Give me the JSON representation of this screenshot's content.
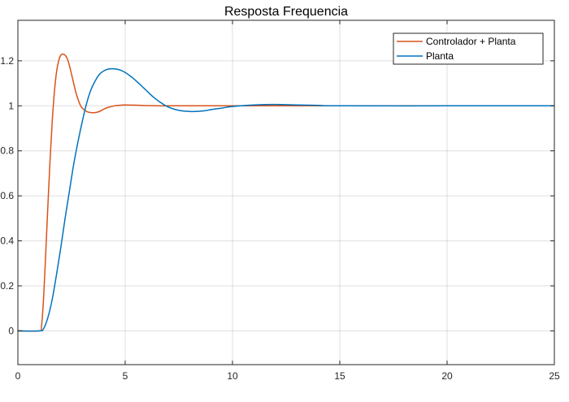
{
  "chart_data": {
    "type": "line",
    "title": "Resposta Frequencia",
    "xlabel": "",
    "ylabel": "",
    "xlim": [
      0,
      25
    ],
    "ylim": [
      -0.15,
      1.38
    ],
    "xticks": [
      0,
      5,
      10,
      15,
      20,
      25
    ],
    "yticks": [
      0,
      0.2,
      0.4,
      0.6,
      0.8,
      1,
      1.2
    ],
    "grid": true,
    "legend_position": "top-right",
    "series": [
      {
        "name": "Controlador + Planta",
        "color": "#D95319",
        "x": [
          0,
          1.0,
          1.1,
          1.2,
          1.3,
          1.4,
          1.5,
          1.6,
          1.7,
          1.8,
          1.9,
          2.0,
          2.1,
          2.2,
          2.3,
          2.4,
          2.5,
          2.6,
          2.7,
          2.8,
          2.9,
          3.0,
          3.2,
          3.4,
          3.6,
          3.8,
          4.0,
          4.2,
          4.5,
          4.8,
          5.0,
          5.5,
          6.0,
          6.5,
          7.0,
          8.0,
          9.0,
          10.0,
          12.0,
          15.0,
          20.0,
          25.0
        ],
        "y": [
          0,
          0,
          0.02,
          0.15,
          0.35,
          0.56,
          0.76,
          0.93,
          1.06,
          1.15,
          1.2,
          1.225,
          1.23,
          1.225,
          1.21,
          1.18,
          1.14,
          1.1,
          1.06,
          1.03,
          1.005,
          0.99,
          0.975,
          0.97,
          0.97,
          0.975,
          0.985,
          0.993,
          1.0,
          1.003,
          1.004,
          1.003,
          1.001,
          1.0,
          1.0,
          1.0,
          1.0,
          1.0,
          1.0,
          1.0,
          1.0,
          1.0
        ]
      },
      {
        "name": "Planta",
        "color": "#0072BD",
        "x": [
          0,
          1.0,
          1.2,
          1.4,
          1.6,
          1.8,
          2.0,
          2.2,
          2.4,
          2.6,
          2.8,
          3.0,
          3.2,
          3.4,
          3.6,
          3.8,
          4.0,
          4.2,
          4.4,
          4.6,
          4.8,
          5.0,
          5.2,
          5.4,
          5.6,
          5.8,
          6.0,
          6.3,
          6.6,
          7.0,
          7.5,
          8.0,
          8.3,
          8.7,
          9.0,
          9.5,
          10.0,
          11.0,
          12.0,
          13.0,
          14.0,
          15.0,
          20.0,
          25.0
        ],
        "y": [
          0,
          0,
          0.01,
          0.06,
          0.14,
          0.25,
          0.37,
          0.5,
          0.62,
          0.74,
          0.84,
          0.93,
          1.01,
          1.07,
          1.11,
          1.14,
          1.155,
          1.163,
          1.165,
          1.163,
          1.158,
          1.148,
          1.135,
          1.12,
          1.103,
          1.085,
          1.067,
          1.04,
          1.018,
          0.995,
          0.98,
          0.975,
          0.975,
          0.978,
          0.983,
          0.99,
          0.997,
          1.004,
          1.006,
          1.004,
          1.002,
          1.0,
          1.0,
          1.0
        ]
      }
    ]
  }
}
